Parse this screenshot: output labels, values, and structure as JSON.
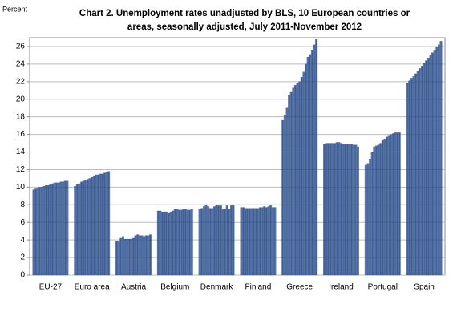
{
  "chart_data": {
    "type": "bar",
    "title": [
      "Chart 2. Unemployment rates unadjusted by BLS, 10 European countries or",
      "areas, seasonally adjusted, July 2011-November 2012"
    ],
    "y_label": "Percent",
    "categories": [
      "EU-27",
      "Euro area",
      "Austria",
      "Belgium",
      "Denmark",
      "Finland",
      "Greece",
      "Ireland",
      "Portugal",
      "Spain"
    ],
    "values": [
      [
        9.7,
        9.8,
        9.9,
        10.0,
        10.0,
        10.1,
        10.2,
        10.2,
        10.3,
        10.4,
        10.5,
        10.5,
        10.5,
        10.6,
        10.6,
        10.7,
        10.7
      ],
      [
        10.1,
        10.3,
        10.4,
        10.6,
        10.7,
        10.8,
        10.9,
        11.0,
        11.1,
        11.3,
        11.4,
        11.4,
        11.5,
        11.5,
        11.6,
        11.7,
        11.8
      ],
      [
        3.8,
        3.9,
        4.2,
        4.4,
        4.1,
        4.1,
        4.1,
        4.1,
        4.2,
        4.5,
        4.6,
        4.5,
        4.5,
        4.4,
        4.5,
        4.5,
        4.6
      ],
      [
        7.3,
        7.3,
        7.2,
        7.2,
        7.2,
        7.1,
        7.2,
        7.3,
        7.5,
        7.5,
        7.4,
        7.4,
        7.5,
        7.5,
        7.4,
        7.4,
        7.5
      ],
      [
        7.5,
        7.6,
        7.8,
        8.0,
        7.8,
        7.6,
        7.6,
        7.8,
        8.0,
        7.9,
        7.9,
        7.5,
        7.5,
        7.9,
        7.5,
        7.9,
        8.0
      ],
      [
        7.7,
        7.7,
        7.6,
        7.6,
        7.6,
        7.6,
        7.6,
        7.6,
        7.6,
        7.7,
        7.7,
        7.8,
        7.7,
        7.8,
        7.9,
        7.7,
        7.7
      ],
      [
        17.6,
        18.2,
        19.0,
        20.5,
        20.8,
        21.3,
        21.6,
        21.8,
        22.0,
        22.5,
        23.1,
        24.0,
        24.8,
        25.1,
        25.6,
        26.2,
        26.8
      ],
      [
        14.9,
        15.0,
        15.0,
        15.0,
        15.0,
        15.0,
        15.1,
        15.1,
        15.0,
        14.9,
        14.9,
        14.9,
        14.9,
        14.9,
        14.8,
        14.8,
        14.6
      ],
      [
        12.5,
        12.7,
        13.2,
        14.0,
        14.6,
        14.7,
        14.8,
        15.0,
        15.3,
        15.5,
        15.7,
        15.9,
        16.0,
        16.1,
        16.2,
        16.2,
        16.2
      ],
      [
        21.8,
        22.1,
        22.4,
        22.6,
        22.9,
        23.2,
        23.5,
        23.8,
        24.1,
        24.4,
        24.7,
        25.0,
        25.3,
        25.6,
        25.9,
        26.2,
        26.6
      ]
    ],
    "color": "#2c4f8c",
    "ylim": [
      0,
      27
    ],
    "yticks": [
      0,
      2,
      4,
      6,
      8,
      10,
      12,
      14,
      16,
      18,
      20,
      22,
      24,
      26
    ],
    "grid": true
  }
}
